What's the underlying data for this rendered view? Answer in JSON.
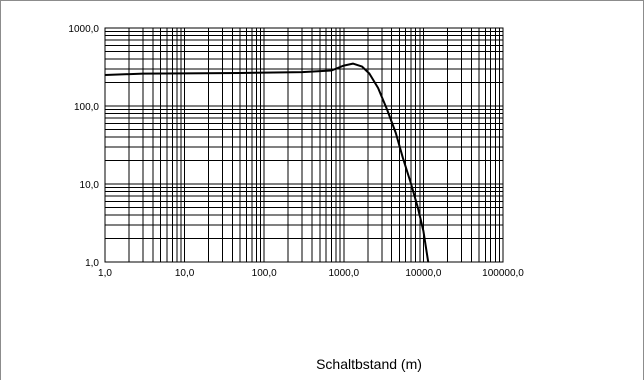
{
  "chart_data": {
    "type": "line",
    "title": "",
    "xlabel": "Schaltbstand (m)",
    "ylabel": "",
    "x_scale": "log",
    "y_scale": "log",
    "xlim": [
      1,
      100000
    ],
    "ylim": [
      1,
      1000
    ],
    "grid": true,
    "x_tick_labels": [
      "1,0",
      "10,0",
      "100,0",
      "1000,0",
      "10000,0",
      "100000,0"
    ],
    "y_tick_labels": [
      "1,0",
      "10,0",
      "100,0",
      "1000,0"
    ],
    "series": [
      {
        "color": "#000000",
        "x": [
          1,
          3,
          10,
          50,
          100,
          300,
          700,
          1000,
          1300,
          1700,
          2100,
          2700,
          3500,
          4500,
          5500,
          7000,
          8500,
          10000,
          11500
        ],
        "y": [
          250,
          260,
          262,
          265,
          268,
          272,
          285,
          330,
          350,
          320,
          260,
          170,
          90,
          45,
          22,
          10,
          5,
          2.5,
          1
        ]
      }
    ]
  }
}
